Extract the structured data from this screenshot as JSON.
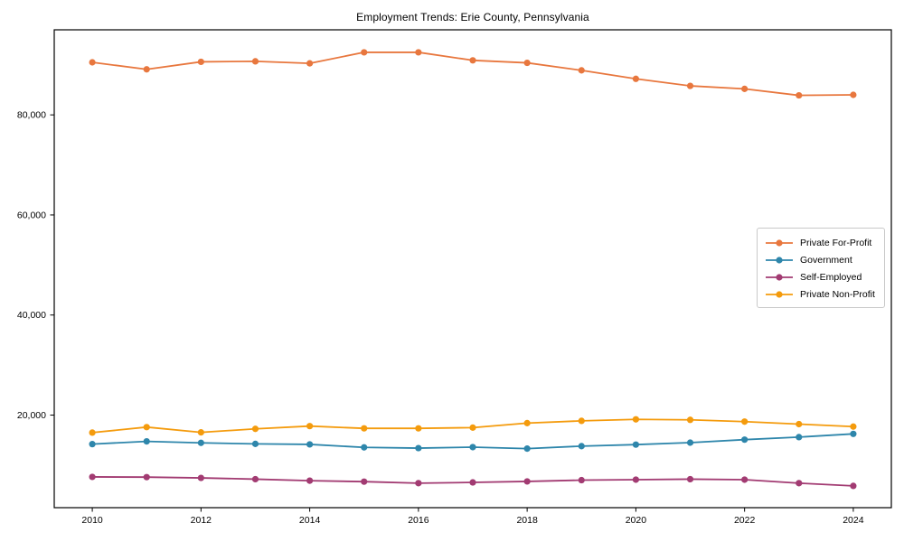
{
  "page": {
    "background": "#ffffff",
    "frame_color": "#000000"
  },
  "chart_data": {
    "type": "line",
    "title": "Employment Trends: Erie County, Pennsylvania",
    "xlabel": "",
    "ylabel": "",
    "grid": false,
    "legend_position": "center-right",
    "x": [
      2010,
      2011,
      2012,
      2013,
      2014,
      2015,
      2016,
      2017,
      2018,
      2019,
      2020,
      2021,
      2022,
      2023,
      2024
    ],
    "x_ticks": [
      2010,
      2012,
      2014,
      2016,
      2018,
      2020,
      2022,
      2024
    ],
    "x_tick_labels": [
      "2010",
      "2012",
      "2014",
      "2016",
      "2018",
      "2020",
      "2022",
      "2024"
    ],
    "xlim": [
      2009.3,
      2024.7
    ],
    "y_ticks": [
      20000,
      40000,
      60000,
      80000
    ],
    "y_tick_labels": [
      "20,000",
      "40,000",
      "60,000",
      "80,000"
    ],
    "ylim": [
      1500,
      97000
    ],
    "series": [
      {
        "name": "Private For-Profit",
        "color": "#e8773e",
        "values": [
          90500,
          89100,
          90600,
          90700,
          90300,
          92500,
          92500,
          90900,
          90400,
          88900,
          87200,
          85800,
          85200,
          83900,
          84000
        ]
      },
      {
        "name": "Government",
        "color": "#2e86ab",
        "values": [
          14200,
          14750,
          14450,
          14250,
          14150,
          13550,
          13400,
          13600,
          13300,
          13800,
          14100,
          14500,
          15100,
          15600,
          16250
        ]
      },
      {
        "name": "Self-Employed",
        "color": "#a23b72",
        "values": [
          7650,
          7600,
          7450,
          7200,
          6900,
          6700,
          6400,
          6550,
          6750,
          7000,
          7100,
          7200,
          7100,
          6400,
          5850
        ]
      },
      {
        "name": "Private Non-Profit",
        "color": "#f49b0d",
        "values": [
          16500,
          17600,
          16550,
          17250,
          17800,
          17350,
          17350,
          17500,
          18400,
          18850,
          19150,
          19050,
          18700,
          18200,
          17700
        ]
      }
    ]
  }
}
